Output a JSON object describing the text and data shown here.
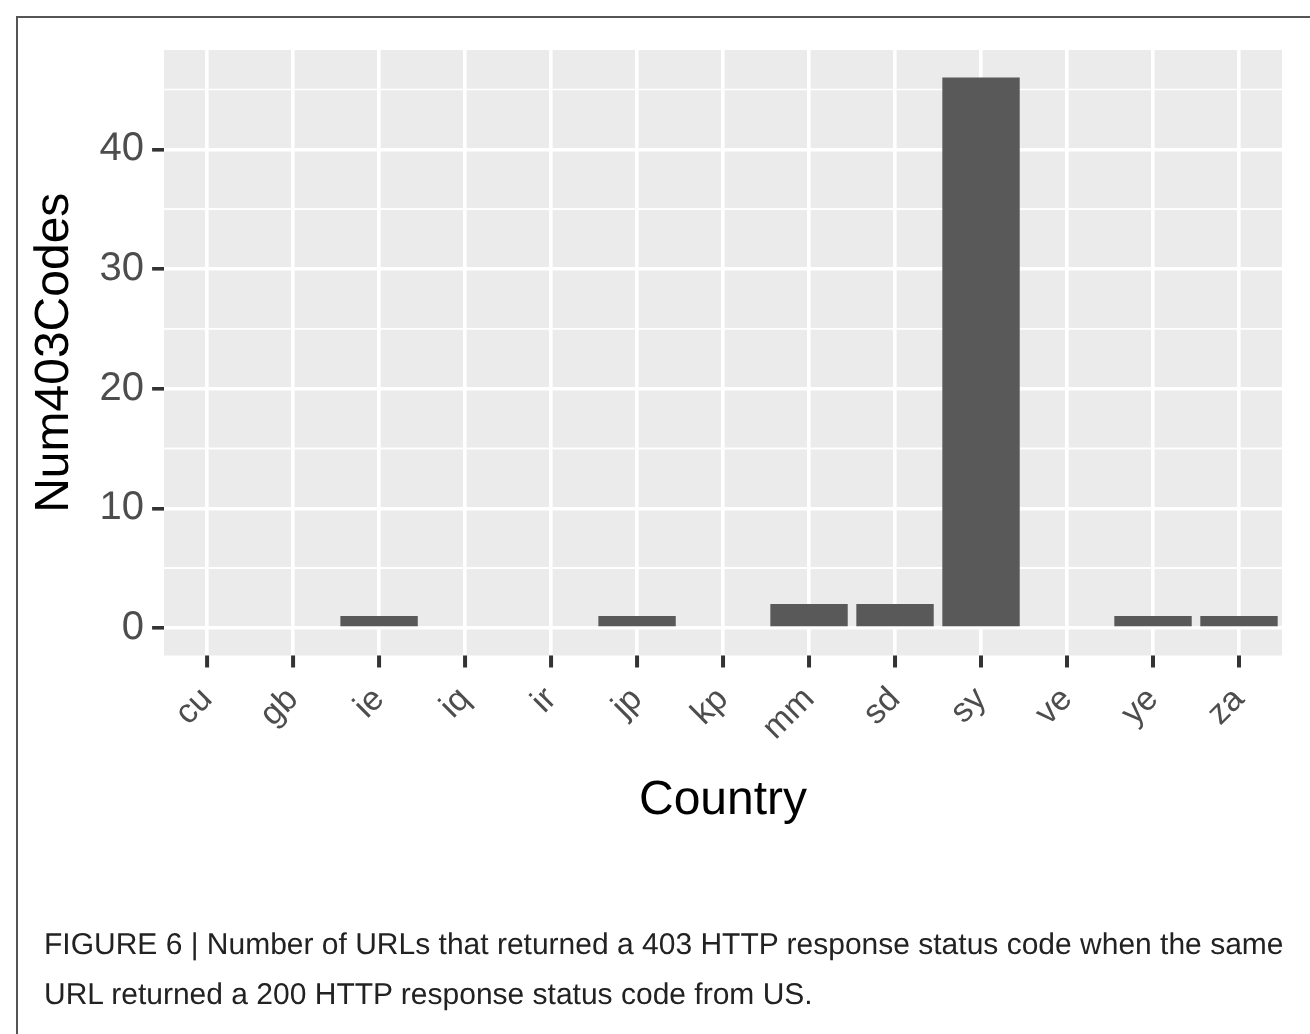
{
  "chart_data": {
    "type": "bar",
    "xlabel": "Country",
    "ylabel": "Num403Codes",
    "categories": [
      "cu",
      "gb",
      "ie",
      "iq",
      "ir",
      "jp",
      "kp",
      "mm",
      "sd",
      "sy",
      "ve",
      "ye",
      "za"
    ],
    "values": [
      0,
      0,
      1,
      0,
      0,
      1,
      0,
      2,
      2,
      46,
      0,
      1,
      1
    ],
    "color": "#595959",
    "ylim": [
      -2.3,
      48.3
    ],
    "yticks": [
      0,
      10,
      20,
      30,
      40
    ],
    "grid": true,
    "legend": false,
    "annotations": [
      "FIGURE 6 | Number of URLs that returned a 403 HTTP response status code when the same URL returned a 200 HTTP response status code from US."
    ]
  }
}
